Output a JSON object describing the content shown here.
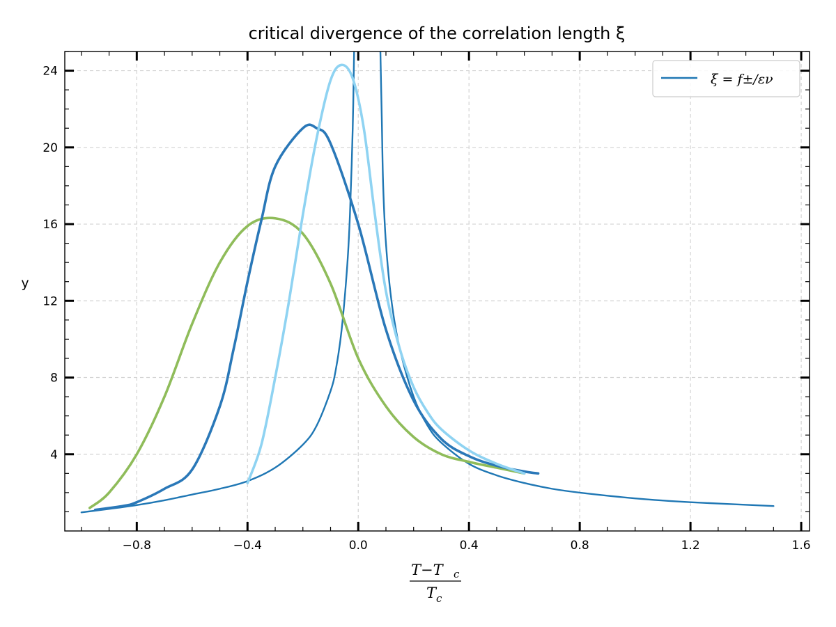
{
  "chart_data": {
    "type": "line",
    "title": "critical divergence of the correlation length ξ",
    "xlabel_numerator": "T−T",
    "xlabel_numerator_sub": "c",
    "xlabel_denominator": "T",
    "xlabel_denominator_sub": "c",
    "ylabel": "y",
    "xlim": [
      -1.06,
      1.63
    ],
    "ylim": [
      0,
      25
    ],
    "xticks": [
      -0.8,
      -0.4,
      0.0,
      0.4,
      0.8,
      1.2,
      1.6
    ],
    "xtick_labels": [
      "−0.8",
      "−0.4",
      "0.0",
      "0.4",
      "0.8",
      "1.2",
      "1.6"
    ],
    "yticks": [
      4,
      8,
      12,
      16,
      20,
      24
    ],
    "ytick_labels": [
      "4",
      "8",
      "12",
      "16",
      "20",
      "24"
    ],
    "grid": true,
    "legend": {
      "placement": "top-right",
      "entries": [
        {
          "label": "ξ = f±/εν",
          "color": "#1f77b4"
        }
      ]
    },
    "series": [
      {
        "name": "ξ = f±/εν",
        "color": "#1f77b4",
        "role": "critical-divergence",
        "x": [
          -1.0,
          -0.9,
          -0.8,
          -0.7,
          -0.6,
          -0.5,
          -0.4,
          -0.3,
          -0.2,
          -0.15,
          -0.1,
          -0.08,
          -0.06,
          -0.04,
          -0.03,
          -0.02,
          -0.015,
          0.08,
          0.085,
          0.09,
          0.1,
          0.12,
          0.15,
          0.2,
          0.25,
          0.3,
          0.4,
          0.5,
          0.6,
          0.7,
          0.8,
          1.0,
          1.2,
          1.5
        ],
        "y": [
          0.97,
          1.15,
          1.35,
          1.6,
          1.9,
          2.2,
          2.6,
          3.3,
          4.5,
          5.5,
          7.3,
          8.5,
          10.5,
          13.8,
          16.5,
          21.0,
          25.0,
          25.0,
          21.5,
          18.0,
          15.0,
          12.0,
          9.5,
          7.0,
          5.5,
          4.6,
          3.5,
          2.9,
          2.5,
          2.2,
          2.0,
          1.7,
          1.5,
          1.3
        ]
      },
      {
        "name": "",
        "color": "#8fbc5a",
        "role": "peak-1",
        "x": [
          -0.97,
          -0.9,
          -0.8,
          -0.7,
          -0.6,
          -0.5,
          -0.4,
          -0.3,
          -0.2,
          -0.1,
          0.0,
          0.1,
          0.2,
          0.3,
          0.4,
          0.5,
          0.6
        ],
        "y": [
          1.2,
          2.0,
          4.0,
          7.0,
          10.8,
          14.0,
          15.9,
          16.3,
          15.5,
          12.9,
          9.0,
          6.5,
          4.9,
          4.0,
          3.6,
          3.3,
          3.0
        ]
      },
      {
        "name": "",
        "color": "#2a78b8",
        "role": "peak-2",
        "x": [
          -0.95,
          -0.85,
          -0.8,
          -0.7,
          -0.6,
          -0.5,
          -0.45,
          -0.4,
          -0.35,
          -0.3,
          -0.2,
          -0.15,
          -0.1,
          0.0,
          0.1,
          0.2,
          0.3,
          0.4,
          0.5,
          0.6,
          0.65
        ],
        "y": [
          1.1,
          1.3,
          1.5,
          2.2,
          3.2,
          6.5,
          9.5,
          13.0,
          16.2,
          19.0,
          21.0,
          21.0,
          20.2,
          16.0,
          10.5,
          6.8,
          4.8,
          3.9,
          3.4,
          3.1,
          3.0
        ]
      },
      {
        "name": "",
        "color": "#8fd3f2",
        "role": "peak-3",
        "x": [
          -0.4,
          -0.35,
          -0.3,
          -0.25,
          -0.2,
          -0.15,
          -0.1,
          -0.06,
          -0.02,
          0.02,
          0.06,
          0.1,
          0.15,
          0.2,
          0.25,
          0.3,
          0.4,
          0.5,
          0.6
        ],
        "y": [
          2.5,
          4.5,
          8.0,
          12.0,
          16.5,
          20.5,
          23.5,
          24.3,
          23.6,
          21.0,
          16.5,
          12.5,
          9.5,
          7.5,
          6.2,
          5.3,
          4.2,
          3.5,
          3.0
        ]
      }
    ]
  }
}
